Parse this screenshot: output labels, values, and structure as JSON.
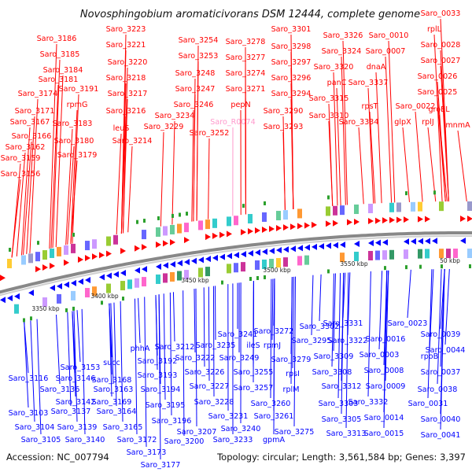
{
  "title": "Novosphingobium aromaticivorans DSM 12444, complete genome",
  "accession": "Accession: NC_007794",
  "summary": "Topology: circular; Length: 3,561,584 bp; Genes: 3,397",
  "colors": {
    "forward": "#ff0000",
    "reverse": "#0000ff",
    "highlight": "#ff99cc",
    "backbone": "#888888",
    "tick": "#2ca02c"
  },
  "scale_labels": [
    "3350 kbp",
    "3400 kbp",
    "3450 kbp",
    "3500 kbp",
    "3550 kbp",
    "50 kbp"
  ],
  "forward_labels": [
    "Saro_3186",
    "Saro_3185",
    "Saro_3184",
    "Saro_3181",
    "Saro_3174",
    "Saro_3191",
    "rpmG",
    "Saro_3171",
    "Saro_3167",
    "Saro_3183",
    "Saro_3166",
    "Saro_3180",
    "Saro_3162",
    "Saro_3159",
    "Saro_3179",
    "Saro_3156",
    "Saro_3223",
    "Saro_3221",
    "Saro_3220",
    "Saro_3218",
    "Saro_3217",
    "Saro_3216",
    "leuS",
    "Saro_3214",
    "Saro_3254",
    "Saro_3253",
    "Saro_3248",
    "Saro_3247",
    "Saro_3246",
    "Saro_3234",
    "Saro_3229",
    "Saro_3252",
    "Saro_3278",
    "Saro_3277",
    "Saro_3274",
    "Saro_3271",
    "pepN",
    "Saro_R0074",
    "Saro_3301",
    "Saro_3298",
    "Saro_3297",
    "Saro_3296",
    "Saro_3294",
    "Saro_3290",
    "Saro_3293",
    "Saro_3326",
    "Saro_3324",
    "Saro_3320",
    "Saro_3315",
    "Saro_3310",
    "Saro_0010",
    "Saro_0007",
    "dnaA",
    "panC",
    "Saro_3337",
    "rpsT",
    "Saro_3334",
    "Saro_0033",
    "rplL",
    "Saro_0028",
    "Saro_0027",
    "Saro_0026",
    "Saro_0025",
    "Saro_0022",
    "groEL",
    "glpX",
    "rplJ",
    "mnmA"
  ],
  "reverse_labels": [
    "Saro_3116",
    "Saro_3153",
    "Saro_3146",
    "succ",
    "Saro_3136",
    "Saro_3168",
    "Saro_3142",
    "Saro_3163",
    "Saro_3103",
    "Saro_3137",
    "Saro_3169",
    "Saro_3164",
    "Saro_3104",
    "Saro_3139",
    "Saro_3165",
    "Saro_3105",
    "Saro_3140",
    "Saro_3172",
    "Saro_3173",
    "Saro_3177",
    "phhA",
    "Saro_3212",
    "Saro_3192",
    "Saro_3193",
    "Saro_3194",
    "Saro_3195",
    "Saro_3196",
    "Saro_3200",
    "Saro_3207",
    "Saro_3241",
    "Saro_3235",
    "Saro_3222",
    "Saro_3226",
    "Saro_3227",
    "Saro_3228",
    "Saro_3231",
    "Saro_3233",
    "Saro_3240",
    "Saro_3249",
    "ileS",
    "Saro_3255",
    "Saro_3257",
    "Saro_3260",
    "Saro_3261",
    "Saro_3272",
    "rpmJ",
    "Saro_3279",
    "rpsI",
    "rplM",
    "gpmA",
    "Saro_3275",
    "Saro_3302",
    "Saro_3295",
    "Saro_3309",
    "Saro_3308",
    "Saro_3312",
    "Saro_3303",
    "Saro_3305",
    "Saro_3313",
    "Saro_3331",
    "Saro_3322",
    "Saro_0003",
    "Saro_0008",
    "Saro_0009",
    "Saro_3332",
    "Saro_0014",
    "Saro_0015",
    "Saro_0023",
    "Saro_0016",
    "rpoB",
    "Saro_0039",
    "Saro_0044",
    "Saro_0037",
    "Saro_0038",
    "Saro_0031",
    "Saro_0040",
    "Saro_0041"
  ]
}
